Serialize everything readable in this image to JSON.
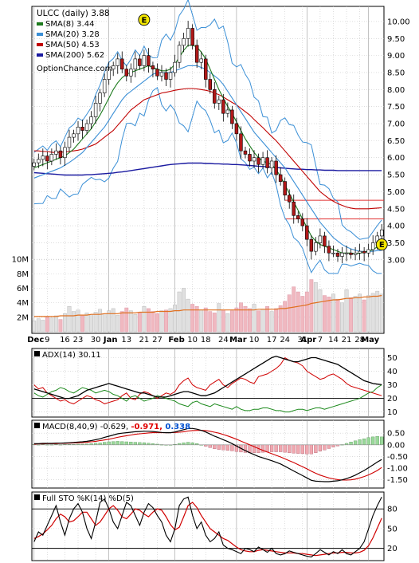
{
  "chart_data": {
    "type": "line",
    "ticker_title": "ULCC (daily) 3.88",
    "watermark": "OptionChance.com",
    "legend": [
      {
        "label": "SMA(8) 3.44",
        "color": "#1c7a1c"
      },
      {
        "label": "SMA(20) 3.28",
        "color": "#3a8fd6"
      },
      {
        "label": "SMA(50) 4.53",
        "color": "#c00000"
      },
      {
        "label": "SMA(200) 5.62",
        "color": "#1a1aa0"
      }
    ],
    "x_labels": [
      "Dec",
      "9",
      "16",
      "23",
      "30",
      "Jan",
      "13",
      "21",
      "27",
      "Feb",
      "10",
      "18",
      "24",
      "Mar",
      "10",
      "17",
      "24",
      "31",
      "Apr",
      "7",
      "14",
      "21",
      "28",
      "May"
    ],
    "x_label_bold": [
      "Dec",
      "Jan",
      "Feb",
      "Mar",
      "Apr",
      "May"
    ],
    "price_axis": {
      "ylim": [
        2.55,
        10.35
      ],
      "ticks": [
        "10.00",
        "9.50",
        "9.00",
        "8.50",
        "8.00",
        "7.50",
        "7.00",
        "6.50",
        "6.00",
        "5.50",
        "5.00",
        "4.50",
        "4.00",
        "3.50",
        "3.00"
      ],
      "tick_values": [
        10.0,
        9.5,
        9.0,
        8.5,
        8.0,
        7.5,
        7.0,
        6.5,
        6.0,
        5.5,
        5.0,
        4.5,
        4.0,
        3.5,
        3.0
      ]
    },
    "volume_axis": {
      "ticks": [
        "10M",
        "8M",
        "6M",
        "4M",
        "2M"
      ],
      "tick_values": [
        10,
        8,
        6,
        4,
        2
      ],
      "unit": "M"
    },
    "earnings_markers": [
      {
        "x": 45,
        "label": "E"
      },
      {
        "x": 99,
        "label": "E"
      }
    ],
    "horizontal_levels": [
      4.75,
      4.2
    ],
    "close": [
      5.85,
      5.95,
      6.05,
      5.9,
      6.1,
      6.2,
      6.0,
      6.3,
      6.6,
      6.7,
      6.9,
      6.8,
      7.0,
      7.2,
      7.6,
      7.9,
      8.3,
      8.6,
      8.7,
      8.9,
      8.6,
      8.4,
      8.6,
      8.9,
      8.7,
      9.0,
      8.7,
      8.6,
      8.4,
      8.5,
      8.3,
      8.5,
      8.8,
      9.3,
      9.5,
      9.8,
      9.3,
      8.8,
      8.9,
      8.3,
      8.0,
      7.6,
      7.7,
      7.3,
      7.4,
      7.0,
      6.7,
      6.2,
      6.1,
      5.9,
      6.0,
      5.8,
      6.0,
      5.7,
      5.9,
      5.5,
      5.3,
      4.9,
      4.7,
      4.3,
      4.2,
      4.0,
      3.6,
      3.25,
      3.5,
      3.7,
      3.4,
      3.2,
      3.2,
      3.1,
      3.2,
      3.2,
      3.15,
      3.2,
      3.25,
      3.2,
      3.3,
      3.5,
      3.7,
      3.88
    ],
    "sma8": [
      5.7,
      5.75,
      5.8,
      5.85,
      5.9,
      5.95,
      6.0,
      6.05,
      6.15,
      6.25,
      6.4,
      6.55,
      6.7,
      6.85,
      7.05,
      7.25,
      7.5,
      7.75,
      8.0,
      8.2,
      8.35,
      8.45,
      8.5,
      8.55,
      8.6,
      8.65,
      8.7,
      8.65,
      8.6,
      8.55,
      8.55,
      8.6,
      8.75,
      8.95,
      9.15,
      9.3,
      9.3,
      9.25,
      9.1,
      8.9,
      8.6,
      8.3,
      8.0,
      7.75,
      7.5,
      7.3,
      7.05,
      6.8,
      6.55,
      6.35,
      6.15,
      6.0,
      5.9,
      5.85,
      5.8,
      5.65,
      5.45,
      5.2,
      4.95,
      4.7,
      4.45,
      4.2,
      3.95,
      3.7,
      3.55,
      3.45,
      3.4,
      3.35,
      3.3,
      3.25,
      3.2,
      3.2,
      3.2,
      3.18,
      3.2,
      3.22,
      3.25,
      3.3,
      3.38,
      3.44
    ],
    "sma20": [
      5.4,
      5.45,
      5.5,
      5.55,
      5.6,
      5.65,
      5.7,
      5.78,
      5.86,
      5.95,
      6.05,
      6.15,
      6.3,
      6.45,
      6.6,
      6.75,
      6.9,
      7.1,
      7.3,
      7.5,
      7.7,
      7.85,
      7.95,
      8.05,
      8.15,
      8.25,
      8.35,
      8.45,
      8.5,
      8.5,
      8.5,
      8.5,
      8.55,
      8.6,
      8.65,
      8.7,
      8.7,
      8.7,
      8.65,
      8.6,
      8.5,
      8.4,
      8.3,
      8.15,
      7.95,
      7.75,
      7.55,
      7.35,
      7.15,
      6.95,
      6.75,
      6.6,
      6.45,
      6.3,
      6.15,
      6.0,
      5.85,
      5.7,
      5.5,
      5.3,
      5.1,
      4.9,
      4.7,
      4.5,
      4.3,
      4.1,
      3.95,
      3.8,
      3.65,
      3.55,
      3.45,
      3.38,
      3.32,
      3.28,
      3.25,
      3.24,
      3.24,
      3.25,
      3.27,
      3.28
    ],
    "sma50": [
      6.2,
      6.2,
      6.18,
      6.18,
      6.16,
      6.15,
      6.16,
      6.17,
      6.18,
      6.2,
      6.22,
      6.25,
      6.3,
      6.35,
      6.4,
      6.5,
      6.6,
      6.7,
      6.8,
      6.95,
      7.1,
      7.25,
      7.4,
      7.5,
      7.6,
      7.7,
      7.75,
      7.8,
      7.85,
      7.9,
      7.92,
      7.95,
      7.98,
      8.0,
      8.02,
      8.03,
      8.03,
      8.02,
      8.0,
      7.98,
      7.95,
      7.9,
      7.85,
      7.78,
      7.7,
      7.62,
      7.55,
      7.45,
      7.35,
      7.25,
      7.12,
      7.0,
      6.88,
      6.75,
      6.62,
      6.5,
      6.35,
      6.2,
      6.05,
      5.9,
      5.75,
      5.6,
      5.45,
      5.3,
      5.15,
      5.0,
      4.9,
      4.8,
      4.72,
      4.65,
      4.6,
      4.55,
      4.52,
      4.5,
      4.5,
      4.5,
      4.5,
      4.51,
      4.52,
      4.53
    ],
    "sma200": [
      5.56,
      5.55,
      5.54,
      5.53,
      5.52,
      5.51,
      5.5,
      5.49,
      5.49,
      5.49,
      5.49,
      5.49,
      5.5,
      5.5,
      5.51,
      5.52,
      5.53,
      5.54,
      5.55,
      5.57,
      5.58,
      5.6,
      5.62,
      5.64,
      5.66,
      5.68,
      5.7,
      5.72,
      5.74,
      5.76,
      5.78,
      5.8,
      5.81,
      5.82,
      5.83,
      5.84,
      5.84,
      5.84,
      5.84,
      5.83,
      5.83,
      5.82,
      5.82,
      5.81,
      5.81,
      5.8,
      5.8,
      5.79,
      5.78,
      5.77,
      5.76,
      5.75,
      5.74,
      5.73,
      5.72,
      5.71,
      5.7,
      5.69,
      5.68,
      5.67,
      5.66,
      5.66,
      5.65,
      5.65,
      5.64,
      5.64,
      5.63,
      5.63,
      5.63,
      5.62,
      5.62,
      5.62,
      5.62,
      5.62,
      5.62,
      5.62,
      5.62,
      5.62,
      5.62,
      5.62
    ],
    "volume": [
      1.5,
      1.8,
      1.6,
      2.0,
      1.9,
      2.2,
      1.7,
      2.5,
      3.5,
      2.8,
      3.0,
      2.2,
      2.6,
      2.4,
      2.7,
      3.1,
      2.5,
      2.9,
      3.2,
      2.3,
      2.8,
      3.3,
      2.9,
      2.4,
      2.6,
      3.5,
      3.2,
      2.8,
      2.5,
      2.9,
      3.0,
      3.2,
      3.7,
      5.5,
      6.0,
      4.5,
      3.8,
      3.5,
      3.0,
      3.3,
      2.8,
      2.6,
      3.9,
      3.0,
      2.5,
      2.9,
      3.3,
      4.0,
      3.5,
      3.2,
      3.8,
      2.9,
      3.1,
      3.5,
      2.8,
      3.2,
      3.6,
      4.2,
      5.1,
      6.2,
      5.5,
      4.9,
      5.5,
      7.2,
      6.8,
      5.8,
      5.0,
      4.8,
      5.2,
      4.5,
      4.0,
      5.8,
      4.7,
      4.9,
      5.2,
      4.4,
      5.0,
      5.3,
      5.6,
      5.2
    ],
    "volume_avg": [
      2.1,
      2.1,
      2.1,
      2.1,
      2.1,
      2.1,
      2.2,
      2.2,
      2.2,
      2.2,
      2.3,
      2.3,
      2.3,
      2.4,
      2.4,
      2.4,
      2.5,
      2.5,
      2.5,
      2.5,
      2.6,
      2.6,
      2.6,
      2.6,
      2.7,
      2.7,
      2.7,
      2.7,
      2.8,
      2.8,
      2.8,
      2.8,
      2.9,
      2.9,
      3.0,
      3.0,
      3.0,
      3.0,
      3.0,
      3.0,
      3.0,
      3.0,
      3.0,
      3.0,
      3.0,
      3.0,
      3.0,
      3.0,
      3.0,
      3.0,
      3.0,
      3.1,
      3.1,
      3.1,
      3.1,
      3.1,
      3.2,
      3.2,
      3.3,
      3.4,
      3.5,
      3.6,
      3.7,
      3.9,
      4.0,
      4.1,
      4.2,
      4.3,
      4.4,
      4.4,
      4.5,
      4.6,
      4.6,
      4.7,
      4.7,
      4.8,
      4.8,
      4.9,
      4.9,
      5.0
    ],
    "adx": {
      "label": "ADX(14) 30.11",
      "ylim": [
        8,
        55
      ],
      "ticks": [
        "50",
        "40",
        "30",
        "20",
        "10"
      ],
      "tick_values": [
        50,
        40,
        30,
        20,
        10
      ],
      "ref_line": 20,
      "adx": [
        27,
        26,
        25,
        24,
        23,
        22,
        21,
        20,
        20,
        21,
        22,
        24,
        26,
        27,
        28,
        29,
        30,
        31,
        30,
        29,
        28,
        27,
        26,
        25,
        24,
        24,
        23,
        22,
        21,
        21,
        21,
        22,
        23,
        24,
        25,
        25,
        24,
        23,
        22,
        22,
        23,
        24,
        26,
        28,
        30,
        32,
        34,
        36,
        38,
        40,
        42,
        44,
        46,
        48,
        50,
        51,
        50,
        49,
        48,
        47,
        47,
        48,
        49,
        50,
        50,
        49,
        48,
        47,
        46,
        45,
        43,
        41,
        39,
        37,
        35,
        33,
        32,
        31,
        30.5,
        30.1
      ],
      "plus_di": [
        30,
        27,
        28,
        24,
        22,
        20,
        18,
        19,
        17,
        16,
        18,
        20,
        22,
        21,
        19,
        18,
        16,
        17,
        18,
        19,
        22,
        24,
        20,
        19,
        23,
        25,
        24,
        22,
        20,
        22,
        24,
        23,
        25,
        30,
        33,
        35,
        30,
        28,
        27,
        26,
        30,
        32,
        34,
        30,
        28,
        31,
        33,
        35,
        34,
        32,
        31,
        36,
        37,
        38,
        40,
        42,
        45,
        50,
        48,
        47,
        46,
        44,
        40,
        38,
        36,
        34,
        35,
        37,
        38,
        36,
        34,
        31,
        29,
        28,
        27,
        26,
        25,
        24,
        23,
        22
      ],
      "minus_di": [
        24,
        22,
        21,
        23,
        25,
        26,
        28,
        27,
        25,
        24,
        26,
        28,
        27,
        26,
        24,
        25,
        26,
        25,
        23,
        22,
        20,
        18,
        21,
        22,
        20,
        18,
        19,
        20,
        22,
        21,
        20,
        19,
        18,
        16,
        15,
        14,
        17,
        18,
        16,
        15,
        14,
        16,
        15,
        14,
        13,
        12,
        14,
        12,
        11,
        11,
        12,
        12,
        13,
        13,
        12,
        11,
        11,
        10,
        10,
        11,
        12,
        12,
        11,
        12,
        13,
        13,
        12,
        13,
        14,
        15,
        16,
        17,
        18,
        19,
        20,
        22,
        24,
        25,
        28,
        30
      ]
    },
    "macd": {
      "label": "MACD(8,40,9) -0.629,",
      "value1": "-0.971,",
      "value2": "0.338",
      "value1_color": "#e00000",
      "value2_color": "#0050d0",
      "ylim": [
        -1.75,
        0.95
      ],
      "ticks": [
        "0.50",
        "0.00",
        "-0.50",
        "-1.00",
        "-1.50"
      ],
      "tick_values": [
        0.5,
        0.0,
        -0.5,
        -1.0,
        -1.5
      ],
      "macd": [
        0.05,
        0.05,
        0.06,
        0.06,
        0.06,
        0.07,
        0.07,
        0.08,
        0.09,
        0.1,
        0.12,
        0.13,
        0.15,
        0.18,
        0.22,
        0.26,
        0.32,
        0.37,
        0.42,
        0.47,
        0.5,
        0.52,
        0.54,
        0.56,
        0.57,
        0.58,
        0.58,
        0.57,
        0.55,
        0.53,
        0.52,
        0.52,
        0.55,
        0.6,
        0.65,
        0.7,
        0.7,
        0.67,
        0.62,
        0.55,
        0.46,
        0.37,
        0.3,
        0.22,
        0.14,
        0.05,
        -0.05,
        -0.15,
        -0.25,
        -0.34,
        -0.42,
        -0.5,
        -0.56,
        -0.62,
        -0.68,
        -0.75,
        -0.82,
        -0.92,
        -1.02,
        -1.12,
        -1.22,
        -1.32,
        -1.42,
        -1.52,
        -1.56,
        -1.57,
        -1.58,
        -1.58,
        -1.56,
        -1.54,
        -1.5,
        -1.45,
        -1.38,
        -1.3,
        -1.2,
        -1.1,
        -0.98,
        -0.86,
        -0.74,
        -0.63
      ],
      "signal": [
        0.03,
        0.04,
        0.04,
        0.05,
        0.05,
        0.05,
        0.06,
        0.06,
        0.07,
        0.08,
        0.09,
        0.1,
        0.11,
        0.13,
        0.15,
        0.18,
        0.21,
        0.24,
        0.28,
        0.32,
        0.36,
        0.39,
        0.42,
        0.45,
        0.47,
        0.49,
        0.51,
        0.52,
        0.52,
        0.52,
        0.52,
        0.52,
        0.53,
        0.54,
        0.56,
        0.59,
        0.61,
        0.62,
        0.62,
        0.61,
        0.58,
        0.54,
        0.5,
        0.44,
        0.38,
        0.31,
        0.24,
        0.16,
        0.08,
        0.0,
        -0.08,
        -0.16,
        -0.24,
        -0.31,
        -0.38,
        -0.45,
        -0.52,
        -0.6,
        -0.68,
        -0.76,
        -0.85,
        -0.94,
        -1.03,
        -1.13,
        -1.22,
        -1.3,
        -1.36,
        -1.42,
        -1.46,
        -1.49,
        -1.51,
        -1.51,
        -1.5,
        -1.47,
        -1.42,
        -1.36,
        -1.29,
        -1.2,
        -1.1,
        -0.97
      ]
    },
    "stochastic": {
      "label": "Full STO %K(14) %D(5)",
      "ylim": [
        5,
        102
      ],
      "ticks": [
        "80",
        "50",
        "20"
      ],
      "tick_values": [
        80,
        50,
        20
      ],
      "ref_lines": [
        80,
        20
      ],
      "k": [
        30,
        45,
        40,
        55,
        70,
        85,
        60,
        40,
        65,
        80,
        88,
        75,
        50,
        35,
        60,
        90,
        95,
        80,
        60,
        50,
        70,
        90,
        85,
        70,
        55,
        75,
        88,
        82,
        70,
        60,
        40,
        30,
        50,
        85,
        95,
        98,
        70,
        50,
        60,
        40,
        30,
        35,
        45,
        25,
        20,
        18,
        15,
        12,
        20,
        18,
        15,
        22,
        18,
        14,
        20,
        12,
        10,
        12,
        16,
        14,
        12,
        10,
        8,
        7,
        12,
        18,
        14,
        10,
        15,
        12,
        18,
        12,
        10,
        15,
        20,
        30,
        50,
        70,
        85,
        98
      ],
      "d": [
        35,
        38,
        42,
        48,
        55,
        65,
        72,
        68,
        60,
        62,
        68,
        75,
        75,
        65,
        55,
        60,
        70,
        80,
        85,
        78,
        68,
        65,
        72,
        80,
        78,
        72,
        68,
        75,
        80,
        78,
        68,
        56,
        48,
        52,
        68,
        85,
        90,
        82,
        70,
        60,
        50,
        45,
        40,
        35,
        32,
        27,
        22,
        18,
        16,
        15,
        15,
        17,
        18,
        17,
        16,
        15,
        14,
        13,
        13,
        13,
        12,
        12,
        11,
        10,
        9,
        10,
        11,
        12,
        13,
        13,
        14,
        14,
        13,
        13,
        14,
        17,
        24,
        36,
        51,
        66
      ]
    }
  }
}
